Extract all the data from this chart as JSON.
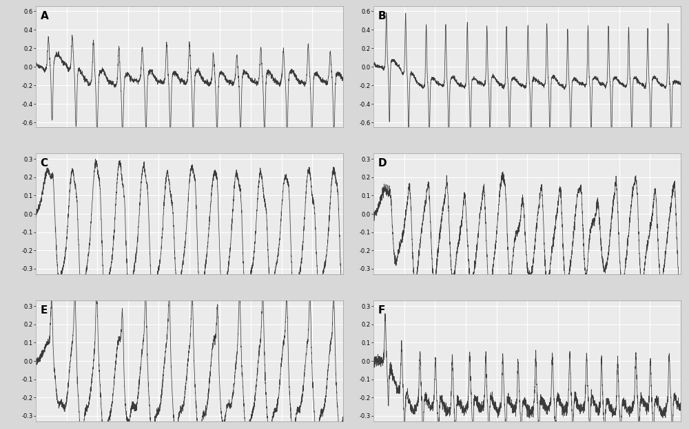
{
  "panels": [
    "A",
    "B",
    "C",
    "D",
    "E",
    "F"
  ],
  "panel_ylims": {
    "A": [
      -0.65,
      0.65
    ],
    "B": [
      -0.65,
      0.65
    ],
    "C": [
      -0.33,
      0.33
    ],
    "D": [
      -0.33,
      0.33
    ],
    "E": [
      -0.33,
      0.33
    ],
    "F": [
      -0.33,
      0.33
    ]
  },
  "panel_yticks": {
    "A": [
      -0.6,
      -0.4,
      -0.2,
      0.0,
      0.2,
      0.4,
      0.6
    ],
    "B": [
      -0.6,
      -0.4,
      -0.2,
      0.0,
      0.2,
      0.4,
      0.6
    ],
    "C": [
      -0.3,
      -0.2,
      -0.1,
      0.0,
      0.1,
      0.2,
      0.3
    ],
    "D": [
      -0.3,
      -0.2,
      -0.1,
      0.0,
      0.1,
      0.2,
      0.3
    ],
    "E": [
      -0.3,
      -0.2,
      -0.1,
      0.0,
      0.1,
      0.2,
      0.3
    ],
    "F": [
      -0.3,
      -0.2,
      -0.1,
      0.0,
      0.1,
      0.2,
      0.3
    ]
  },
  "line_color": "#3a3a3a",
  "bg_color": "#d8d8d8",
  "plot_bg": "#ebebeb",
  "grid_color": "#ffffff",
  "label_fontsize": 11,
  "seed": 42,
  "n_points": 3000,
  "heart_rate_A": 13,
  "heart_rate_B": 15,
  "heart_rate_C": 13,
  "heart_rate_D": 16,
  "heart_rate_E": 13,
  "heart_rate_F": 18
}
